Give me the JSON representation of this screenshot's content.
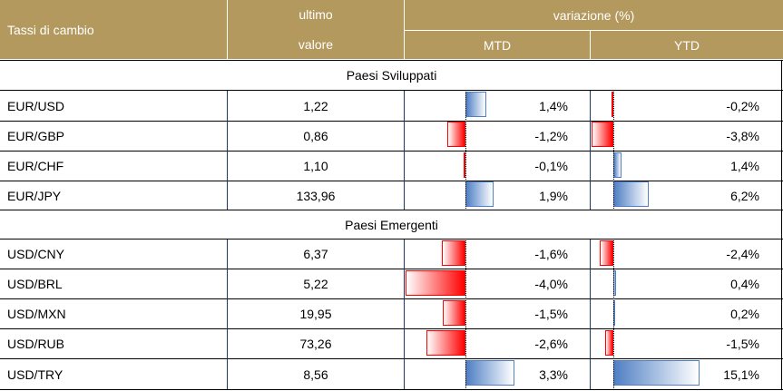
{
  "header": {
    "first_col": "Tassi di cambio",
    "ultimo_line1": "ultimo",
    "ultimo_line2": "valore",
    "variazione": "variazione (%)",
    "mtd": "MTD",
    "ytd": "YTD"
  },
  "colors": {
    "header_bg": "#b3995d",
    "positive_bar": "#4f7fc4",
    "negative_bar": "#ff0000"
  },
  "sections": [
    {
      "title": "Paesi Sviluppati",
      "rows": [
        {
          "pair": "EUR/USD",
          "value": "1,22",
          "mtd": "1,4%",
          "mtd_num": 1.4,
          "ytd": "-0,2%",
          "ytd_num": -0.2
        },
        {
          "pair": "EUR/GBP",
          "value": "0,86",
          "mtd": "-1,2%",
          "mtd_num": -1.2,
          "ytd": "-3,8%",
          "ytd_num": -3.8
        },
        {
          "pair": "EUR/CHF",
          "value": "1,10",
          "mtd": "-0,1%",
          "mtd_num": -0.1,
          "ytd": "1,4%",
          "ytd_num": 1.4
        },
        {
          "pair": "EUR/JPY",
          "value": "133,96",
          "mtd": "1,9%",
          "mtd_num": 1.9,
          "ytd": "6,2%",
          "ytd_num": 6.2
        }
      ]
    },
    {
      "title": "Paesi Emergenti",
      "rows": [
        {
          "pair": "USD/CNY",
          "value": "6,37",
          "mtd": "-1,6%",
          "mtd_num": -1.6,
          "ytd": "-2,4%",
          "ytd_num": -2.4
        },
        {
          "pair": "USD/BRL",
          "value": "5,22",
          "mtd": "-4,0%",
          "mtd_num": -4.0,
          "ytd": "0,4%",
          "ytd_num": 0.4
        },
        {
          "pair": "USD/MXN",
          "value": "19,95",
          "mtd": "-1,5%",
          "mtd_num": -1.5,
          "ytd": "0,2%",
          "ytd_num": 0.2
        },
        {
          "pair": "USD/RUB",
          "value": "73,26",
          "mtd": "-2,6%",
          "mtd_num": -2.6,
          "ytd": "-1,5%",
          "ytd_num": -1.5
        },
        {
          "pair": "USD/TRY",
          "value": "8,56",
          "mtd": "3,3%",
          "mtd_num": 3.3,
          "ytd": "15,1%",
          "ytd_num": 15.1
        }
      ]
    }
  ]
}
